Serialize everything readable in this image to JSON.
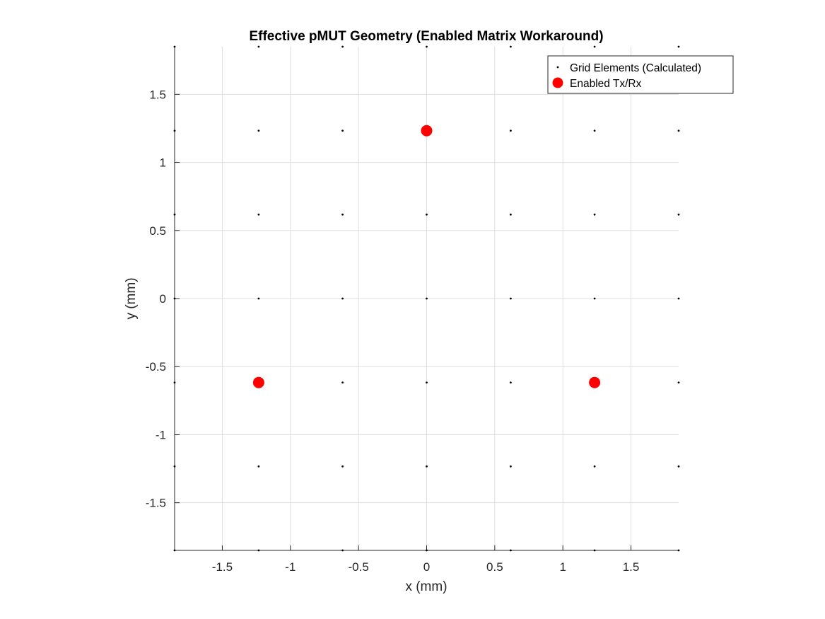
{
  "chart_data": {
    "type": "scatter",
    "title": "Effective pMUT Geometry (Enabled Matrix Workaround)",
    "xlabel": "x (mm)",
    "ylabel": "y (mm)",
    "xlim": [
      -1.85,
      1.85
    ],
    "ylim": [
      -1.85,
      1.85
    ],
    "xticks": [
      -1.5,
      -1,
      -0.5,
      0,
      0.5,
      1,
      1.5
    ],
    "xtick_labels": [
      "-1.5",
      "-1",
      "-0.5",
      "0",
      "0.5",
      "1",
      "1.5"
    ],
    "yticks": [
      -1.5,
      -1,
      -0.5,
      0,
      0.5,
      1,
      1.5
    ],
    "ytick_labels": [
      "-1.5",
      "-1",
      "-0.5",
      "0",
      "0.5",
      "1",
      "1.5"
    ],
    "grid": true,
    "legend_position": "top-right",
    "series": [
      {
        "name": "Grid Elements (Calculated)",
        "marker": "dot",
        "color": "#000000",
        "x_values": [
          -1.85,
          -1.233,
          -0.617,
          0,
          0.617,
          1.233,
          1.85
        ],
        "y_values": [
          -1.85,
          -1.233,
          -0.617,
          0,
          0.617,
          1.233,
          1.85
        ]
      },
      {
        "name": "Enabled Tx/Rx",
        "marker": "circle-filled",
        "color": "#ff0000",
        "points": [
          {
            "x": 0,
            "y": 1.233
          },
          {
            "x": -1.233,
            "y": -0.617
          },
          {
            "x": 1.233,
            "y": -0.617
          }
        ]
      }
    ]
  }
}
